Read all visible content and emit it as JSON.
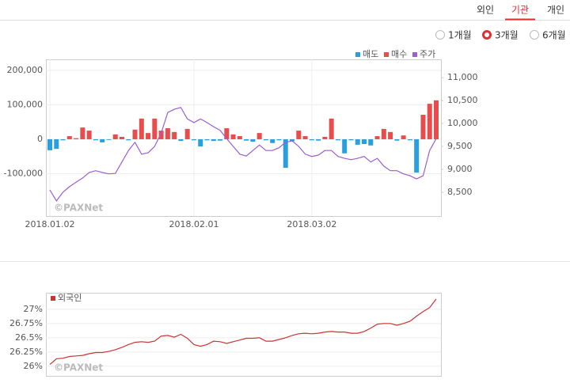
{
  "tabs": {
    "items": [
      "외인",
      "기관",
      "개인"
    ],
    "active": 1
  },
  "periods": {
    "items": [
      "1개월",
      "3개월",
      "6개월"
    ],
    "selected": 1
  },
  "chart_data": [
    {
      "type": "bar",
      "legend_position": "top-right",
      "grid": true,
      "watermark": "©PAXNet",
      "categories": [
        "2018.01.02",
        null,
        null,
        null,
        null,
        null,
        null,
        null,
        null,
        null,
        null,
        null,
        null,
        null,
        null,
        null,
        null,
        null,
        null,
        null,
        null,
        null,
        "2018.02.01",
        null,
        null,
        null,
        null,
        null,
        null,
        null,
        null,
        null,
        null,
        null,
        null,
        null,
        null,
        null,
        null,
        null,
        "2018.03.02",
        null,
        null,
        null,
        null,
        null,
        null,
        null,
        null,
        null,
        null,
        null,
        null,
        null,
        null,
        null,
        null,
        null,
        null,
        null
      ],
      "series": [
        {
          "name": "매도",
          "color": "#2a9fe0",
          "values": [
            -32000,
            -28000,
            -3000,
            null,
            null,
            null,
            null,
            -3000,
            -9000,
            -2000,
            null,
            null,
            -3000,
            null,
            null,
            null,
            null,
            null,
            null,
            null,
            -5000,
            null,
            -3000,
            -21000,
            -3000,
            -5000,
            -4000,
            null,
            null,
            null,
            -4000,
            -7000,
            null,
            -3000,
            -11000,
            -3000,
            -83000,
            -6000,
            null,
            null,
            -3000,
            -4000,
            null,
            null,
            -3000,
            -41000,
            -3000,
            -16000,
            -14000,
            -18000,
            null,
            null,
            null,
            -4000,
            null,
            -3000,
            -97000,
            null,
            null,
            null
          ]
        },
        {
          "name": "매수",
          "color": "#e84c4c",
          "values": [
            null,
            null,
            null,
            9000,
            3000,
            34000,
            25000,
            null,
            null,
            null,
            14000,
            7000,
            null,
            28000,
            60000,
            18000,
            60000,
            25000,
            32000,
            21000,
            null,
            30000,
            null,
            null,
            null,
            null,
            null,
            32000,
            14000,
            9000,
            null,
            null,
            18000,
            null,
            null,
            null,
            null,
            null,
            25000,
            9000,
            null,
            null,
            7000,
            60000,
            null,
            null,
            null,
            null,
            null,
            null,
            9000,
            30000,
            21000,
            null,
            11000,
            null,
            null,
            71000,
            103000,
            113000
          ]
        },
        {
          "name": "주가",
          "type": "line",
          "axis": "y2",
          "color": "#9b5fd0",
          "values": [
            8550,
            8310,
            8500,
            8620,
            8720,
            8810,
            8930,
            8970,
            8930,
            8900,
            8910,
            9160,
            9410,
            9590,
            9330,
            9360,
            9500,
            9790,
            10240,
            10310,
            10350,
            10100,
            10020,
            10100,
            10020,
            9930,
            9850,
            9670,
            9500,
            9330,
            9290,
            9410,
            9530,
            9410,
            9410,
            9470,
            9590,
            9620,
            9500,
            9330,
            9280,
            9310,
            9410,
            9410,
            9280,
            9240,
            9210,
            9240,
            9280,
            9160,
            9240,
            9070,
            8970,
            8970,
            8900,
            8860,
            8790,
            8860,
            9410,
            9670
          ]
        }
      ],
      "ylim": [
        -223000,
        232000
      ],
      "yticks": [
        {
          "value": -100000,
          "label": "-100,000"
        },
        0,
        {
          "value": 100000,
          "label": "100,000"
        },
        {
          "value": 200000,
          "label": "200,000"
        }
      ],
      "y2lim": [
        7980,
        11400
      ],
      "y2ticks": [
        {
          "value": 8500,
          "label": "8,500"
        },
        {
          "value": 9000,
          "label": "9,000"
        },
        {
          "value": 9500,
          "label": "9,500"
        },
        {
          "value": 10000,
          "label": "10,000"
        },
        {
          "value": 10500,
          "label": "10,500"
        },
        {
          "value": 11000,
          "label": "11,000"
        }
      ]
    },
    {
      "type": "line",
      "legend_position": "top-left",
      "grid": true,
      "watermark": "©PAXNet",
      "series": [
        {
          "name": "외국인",
          "color": "#cc3333",
          "values": [
            26.03,
            26.13,
            26.14,
            26.17,
            26.18,
            26.19,
            26.22,
            26.24,
            26.24,
            26.26,
            26.29,
            26.33,
            26.38,
            26.42,
            26.43,
            26.42,
            26.44,
            26.53,
            26.54,
            26.51,
            26.56,
            26.49,
            26.38,
            26.35,
            26.38,
            26.44,
            26.43,
            26.4,
            26.43,
            26.46,
            26.49,
            26.49,
            26.5,
            26.44,
            26.44,
            26.47,
            26.5,
            26.54,
            26.57,
            26.58,
            26.57,
            26.58,
            26.6,
            26.61,
            26.6,
            26.6,
            26.58,
            26.58,
            26.61,
            26.67,
            26.74,
            26.75,
            26.75,
            26.72,
            26.75,
            26.79,
            26.88,
            26.96,
            27.03,
            27.18
          ]
        }
      ],
      "ylim": [
        25.83,
        27.29
      ],
      "yticks": [
        {
          "value": 26,
          "label": "26%"
        },
        {
          "value": 26.25,
          "label": "26.25%"
        },
        {
          "value": 26.5,
          "label": "26.5%"
        },
        {
          "value": 26.75,
          "label": "26.75%"
        },
        {
          "value": 27,
          "label": "27%"
        }
      ]
    }
  ]
}
